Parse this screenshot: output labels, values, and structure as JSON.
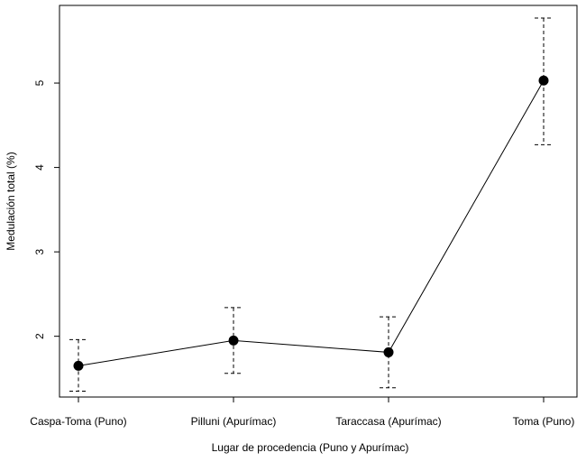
{
  "chart_data": {
    "type": "line",
    "title": "",
    "xlabel": "Lugar de procedencia (Puno y Apurímac)",
    "ylabel": "Medulación total (%)",
    "categories": [
      "Caspa-Toma (Puno)",
      "Pilluni (Apurímac)",
      "Taraccasa (Apurímac)",
      "Toma (Puno)"
    ],
    "series": [
      {
        "values": [
          1.65,
          1.95,
          1.81,
          5.03
        ],
        "error_low": [
          1.35,
          1.56,
          1.39,
          4.27
        ],
        "error_high": [
          1.96,
          2.34,
          2.23,
          5.77
        ]
      }
    ],
    "yticks": [
      2,
      3,
      4,
      5
    ],
    "ylim": [
      1.28,
      5.92
    ],
    "grid": false,
    "legend": "none",
    "colors": {
      "line": "#000000",
      "marker": "#000000"
    }
  }
}
